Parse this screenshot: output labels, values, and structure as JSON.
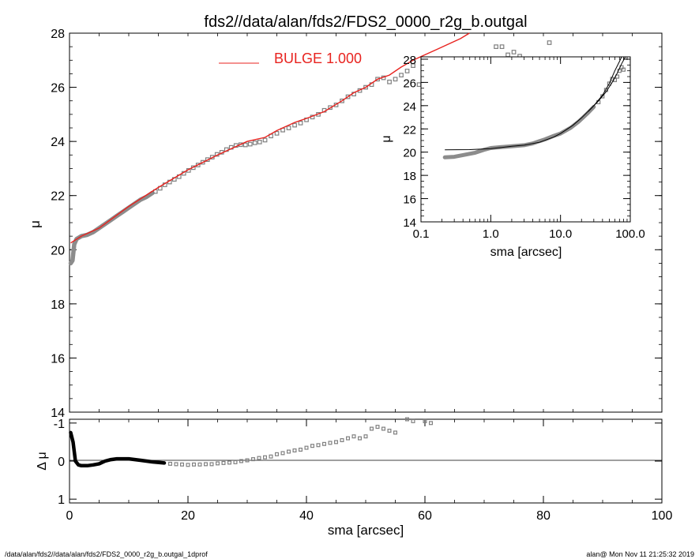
{
  "chart_data": [
    {
      "type": "scatter",
      "title": "fds2//data/alan/fds2/FDS2_0000_r2g_b.outgal",
      "xlabel": "",
      "ylabel": "μ",
      "xlim": [
        0,
        100
      ],
      "ylim": [
        28,
        14
      ],
      "yticks": [
        "14",
        "16",
        "18",
        "20",
        "22",
        "24",
        "26",
        "28"
      ],
      "legend": {
        "label": "BULGE  1.000",
        "color": "#e8231f",
        "placement": "top-center"
      },
      "series": [
        {
          "style": "dense-data",
          "color": "#8c8c8c",
          "points": [
            [
              0.2,
              19.5
            ],
            [
              0.5,
              19.6
            ],
            [
              0.8,
              20.2
            ],
            [
              1.2,
              20.4
            ],
            [
              1.6,
              20.45
            ],
            [
              2.0,
              20.5
            ],
            [
              3.0,
              20.55
            ],
            [
              4.0,
              20.65
            ],
            [
              5.0,
              20.8
            ],
            [
              6.0,
              20.95
            ],
            [
              7.0,
              21.1
            ],
            [
              8.0,
              21.25
            ],
            [
              9.0,
              21.4
            ],
            [
              10.0,
              21.55
            ],
            [
              11.0,
              21.7
            ],
            [
              12.0,
              21.85
            ],
            [
              13.0,
              21.95
            ],
            [
              14.0,
              22.1
            ]
          ]
        },
        {
          "style": "squares",
          "color": "#808080",
          "points": [
            [
              14.5,
              22.15
            ],
            [
              15.3,
              22.27
            ],
            [
              16.1,
              22.4
            ],
            [
              16.9,
              22.5
            ],
            [
              17.7,
              22.6
            ],
            [
              18.5,
              22.7
            ],
            [
              19.3,
              22.82
            ],
            [
              20.1,
              22.93
            ],
            [
              20.9,
              23.03
            ],
            [
              21.7,
              23.13
            ],
            [
              22.5,
              23.23
            ],
            [
              23.3,
              23.33
            ],
            [
              24.1,
              23.42
            ],
            [
              24.9,
              23.52
            ],
            [
              25.7,
              23.6
            ],
            [
              26.5,
              23.7
            ],
            [
              27.3,
              23.78
            ],
            [
              28.1,
              23.85
            ],
            [
              28.9,
              23.88
            ],
            [
              29.7,
              23.87
            ],
            [
              30.5,
              23.9
            ],
            [
              31.3,
              23.95
            ],
            [
              32.1,
              23.98
            ],
            [
              33.0,
              24.05
            ],
            [
              34.0,
              24.2
            ],
            [
              35.0,
              24.3
            ],
            [
              36.0,
              24.42
            ],
            [
              37.0,
              24.5
            ],
            [
              38.0,
              24.6
            ],
            [
              39.0,
              24.68
            ],
            [
              40.0,
              24.8
            ],
            [
              41.0,
              24.9
            ],
            [
              42.0,
              25.0
            ],
            [
              43.0,
              25.15
            ],
            [
              44.0,
              25.25
            ],
            [
              45.0,
              25.35
            ],
            [
              46.0,
              25.5
            ],
            [
              47.0,
              25.65
            ],
            [
              48.0,
              25.75
            ],
            [
              49.0,
              25.88
            ],
            [
              50.0,
              26.0
            ],
            [
              51.0,
              26.1
            ],
            [
              52.0,
              26.3
            ],
            [
              53.0,
              26.35
            ],
            [
              54.0,
              26.2
            ],
            [
              55.0,
              26.3
            ],
            [
              56.0,
              26.45
            ],
            [
              57.0,
              26.6
            ],
            [
              58.0,
              26.8
            ],
            [
              59.0,
              26.1
            ],
            [
              60.0,
              26.2
            ],
            [
              61.0,
              26.4
            ],
            [
              62.0,
              26.6
            ],
            [
              63.0,
              26.6
            ],
            [
              64.0,
              26.5
            ],
            [
              66.0,
              26.4
            ],
            [
              67.0,
              26.5
            ],
            [
              68.0,
              26.95
            ],
            [
              69.0,
              26.95
            ],
            [
              70.0,
              26.95
            ],
            [
              72.0,
              27.5
            ],
            [
              73.0,
              27.5
            ],
            [
              74.0,
              27.2
            ],
            [
              75.0,
              27.3
            ],
            [
              76.0,
              27.15
            ],
            [
              78.0,
              26.95
            ],
            [
              79.0,
              27.0
            ],
            [
              81.0,
              27.65
            ]
          ]
        },
        {
          "style": "line",
          "color": "#e8231f",
          "points": [
            [
              0.2,
              20.25
            ],
            [
              2.0,
              20.5
            ],
            [
              5.0,
              20.8
            ],
            [
              10.0,
              21.6
            ],
            [
              15.0,
              22.3
            ],
            [
              20.0,
              22.95
            ],
            [
              25.0,
              23.5
            ],
            [
              30.0,
              24.0
            ],
            [
              33.0,
              24.15
            ],
            [
              35.0,
              24.4
            ],
            [
              38.0,
              24.7
            ],
            [
              40.0,
              24.85
            ],
            [
              43.0,
              25.1
            ],
            [
              46.0,
              25.5
            ],
            [
              48.0,
              25.8
            ],
            [
              50.0,
              26.0
            ],
            [
              52.0,
              26.3
            ],
            [
              54.0,
              26.45
            ],
            [
              56.0,
              26.75
            ],
            [
              58.0,
              27.0
            ],
            [
              60.0,
              27.2
            ],
            [
              62.0,
              27.4
            ],
            [
              64.0,
              27.6
            ],
            [
              66.0,
              27.8
            ],
            [
              67.5,
              28.05
            ]
          ]
        }
      ]
    },
    {
      "type": "scatter",
      "xlabel": "sma [arcsec]",
      "ylabel": "Δ μ",
      "xlim": [
        0,
        100
      ],
      "ylim": [
        -1.1,
        1.1
      ],
      "xticks": [
        "0",
        "20",
        "40",
        "60",
        "80",
        "100"
      ],
      "yticks": [
        "1",
        "0",
        "-1"
      ],
      "series": [
        {
          "style": "dense-data",
          "color": "#000000",
          "points": [
            [
              0.2,
              -0.75
            ],
            [
              0.6,
              -0.5
            ],
            [
              1.0,
              0.0
            ],
            [
              1.5,
              0.1
            ],
            [
              2.0,
              0.12
            ],
            [
              3.0,
              0.12
            ],
            [
              4.0,
              0.1
            ],
            [
              5.0,
              0.07
            ],
            [
              6.0,
              0.0
            ],
            [
              7.0,
              -0.04
            ],
            [
              8.0,
              -0.06
            ],
            [
              10.0,
              -0.06
            ],
            [
              12.0,
              -0.02
            ],
            [
              14.0,
              0.02
            ],
            [
              16.0,
              0.05
            ]
          ]
        },
        {
          "style": "squares",
          "color": "#808080",
          "points": [
            [
              17,
              0.07
            ],
            [
              18,
              0.08
            ],
            [
              19,
              0.09
            ],
            [
              20,
              0.1
            ],
            [
              21,
              0.09
            ],
            [
              22,
              0.09
            ],
            [
              23,
              0.08
            ],
            [
              24,
              0.08
            ],
            [
              25,
              0.06
            ],
            [
              26,
              0.05
            ],
            [
              27,
              0.04
            ],
            [
              28,
              0.03
            ],
            [
              29,
              0.0
            ],
            [
              30,
              -0.02
            ],
            [
              31,
              -0.05
            ],
            [
              32,
              -0.08
            ],
            [
              33,
              -0.1
            ],
            [
              34,
              -0.12
            ],
            [
              35,
              -0.18
            ],
            [
              36,
              -0.21
            ],
            [
              37,
              -0.25
            ],
            [
              38,
              -0.28
            ],
            [
              39,
              -0.3
            ],
            [
              40,
              -0.35
            ],
            [
              41,
              -0.4
            ],
            [
              42,
              -0.42
            ],
            [
              43,
              -0.45
            ],
            [
              44,
              -0.48
            ],
            [
              45,
              -0.5
            ],
            [
              46,
              -0.55
            ],
            [
              47,
              -0.6
            ],
            [
              48,
              -0.65
            ],
            [
              49,
              -0.6
            ],
            [
              50,
              -0.65
            ],
            [
              51,
              -0.85
            ],
            [
              52,
              -0.9
            ],
            [
              53,
              -0.85
            ],
            [
              54,
              -0.8
            ],
            [
              55,
              -0.75
            ],
            [
              57,
              -1.1
            ],
            [
              58,
              -1.05
            ],
            [
              60,
              -1.05
            ],
            [
              61,
              -1.0
            ]
          ]
        }
      ]
    },
    {
      "type": "scatter",
      "xlabel": "sma [arcsec]",
      "ylabel": "μ",
      "xscale": "log",
      "xlim": [
        0.1,
        100
      ],
      "ylim": [
        28.2,
        14
      ],
      "xticks": [
        "0.1",
        "1.0",
        "10.0",
        "100.0"
      ],
      "yticks": [
        "14",
        "16",
        "18",
        "20",
        "22",
        "24",
        "26",
        "28"
      ],
      "series": [
        {
          "style": "dense-data",
          "color": "#8c8c8c",
          "points": [
            [
              0.22,
              19.55
            ],
            [
              0.3,
              19.6
            ],
            [
              0.4,
              19.75
            ],
            [
              0.6,
              19.95
            ],
            [
              0.8,
              20.2
            ],
            [
              1.0,
              20.35
            ],
            [
              1.5,
              20.45
            ],
            [
              2.0,
              20.5
            ],
            [
              3.0,
              20.6
            ],
            [
              4.0,
              20.75
            ],
            [
              5.0,
              20.95
            ],
            [
              6.0,
              21.1
            ],
            [
              8.0,
              21.4
            ],
            [
              10.0,
              21.6
            ],
            [
              14.0,
              22.1
            ],
            [
              18.0,
              22.6
            ],
            [
              24.0,
              23.3
            ],
            [
              30.0,
              23.9
            ]
          ]
        },
        {
          "style": "squares",
          "color": "#808080",
          "points": [
            [
              35,
              24.3
            ],
            [
              40,
              24.8
            ],
            [
              45,
              25.35
            ],
            [
              50,
              25.9
            ],
            [
              55,
              26.3
            ],
            [
              60,
              26.2
            ],
            [
              65,
              26.5
            ],
            [
              70,
              27.0
            ],
            [
              75,
              27.3
            ],
            [
              80,
              27.1
            ]
          ]
        },
        {
          "style": "line",
          "color": "#000000",
          "points": [
            [
              0.22,
              20.2
            ],
            [
              0.5,
              20.22
            ],
            [
              1.0,
              20.3
            ],
            [
              2.0,
              20.5
            ],
            [
              3.0,
              20.6
            ],
            [
              5.0,
              20.85
            ],
            [
              8.0,
              21.3
            ],
            [
              10.0,
              21.6
            ],
            [
              15.0,
              22.3
            ],
            [
              20.0,
              22.95
            ],
            [
              30.0,
              24.0
            ],
            [
              40.0,
              24.9
            ],
            [
              50.0,
              25.9
            ],
            [
              60.0,
              27.0
            ],
            [
              70.0,
              27.8
            ],
            [
              75.0,
              28.2
            ]
          ]
        },
        {
          "style": "line",
          "color": "#000000",
          "points": [
            [
              25.0,
              23.5
            ],
            [
              35.0,
              24.4
            ],
            [
              45.0,
              25.2
            ],
            [
              55.0,
              26.0
            ],
            [
              65.0,
              26.8
            ],
            [
              75.0,
              27.6
            ],
            [
              85.0,
              28.2
            ]
          ]
        }
      ]
    }
  ],
  "footer": {
    "left": "/data/alan/fds2//data/alan/fds2/FDS2_0000_r2g_b.outgal_1dprof",
    "right": "alan@  Mon Nov 11 21:25:32 2019"
  }
}
